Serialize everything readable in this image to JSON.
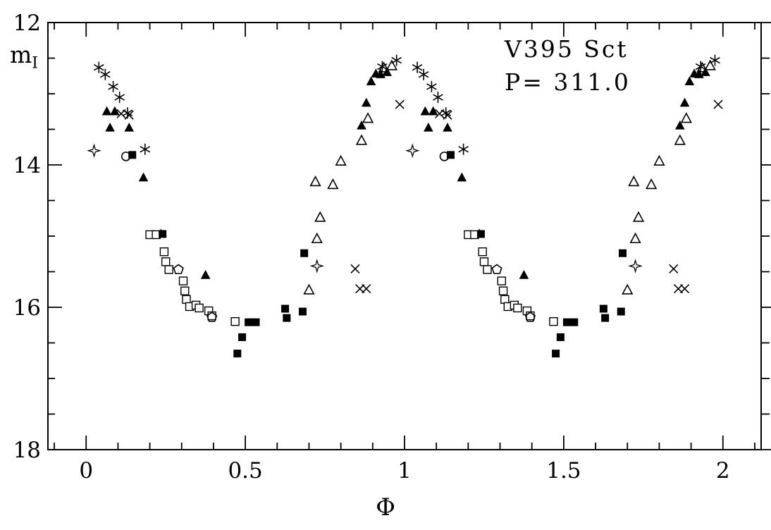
{
  "annotation": {
    "star": "V395 Sct",
    "period": "P= 311.0"
  },
  "labels": {
    "ylabel_main": "m",
    "ylabel_sub": "I",
    "xlabel": "Φ"
  },
  "colors": {
    "foreground": "#000000",
    "background": "#ffffff"
  },
  "chart_data": {
    "type": "scatter",
    "title": "V395 Sct",
    "subtitle": "P= 311.0",
    "xlabel": "Φ",
    "ylabel": "m_I",
    "xlim": [
      -0.12,
      2.12
    ],
    "ylim": [
      12,
      18
    ],
    "y_inverted_magnitude_axis": true,
    "grid": false,
    "legend": "none",
    "phase_duplicated": true,
    "x_major_ticks": [
      {
        "v": 0,
        "label": "0"
      },
      {
        "v": 0.5,
        "label": "0.5"
      },
      {
        "v": 1,
        "label": "1"
      },
      {
        "v": 1.5,
        "label": "1.5"
      },
      {
        "v": 2,
        "label": "2"
      }
    ],
    "x_minor_step": 0.1,
    "y_major_ticks": [
      {
        "v": 12,
        "label": "12"
      },
      {
        "v": 14,
        "label": "14"
      },
      {
        "v": 16,
        "label": "16"
      },
      {
        "v": 18,
        "label": "18"
      }
    ],
    "y_minor_step": 0.5,
    "series": [
      {
        "name": "asterisk",
        "marker": "asterisk",
        "points": [
          [
            0.04,
            12.63
          ],
          [
            0.06,
            12.73
          ],
          [
            0.085,
            12.9
          ],
          [
            0.105,
            13.05
          ],
          [
            0.13,
            13.27
          ],
          [
            0.185,
            13.78
          ],
          [
            0.93,
            12.62
          ],
          [
            0.975,
            12.53
          ]
        ]
      },
      {
        "name": "filled-triangle",
        "marker": "triangle-filled",
        "points": [
          [
            0.065,
            13.25
          ],
          [
            0.09,
            13.25
          ],
          [
            0.075,
            13.48
          ],
          [
            0.135,
            13.48
          ],
          [
            0.18,
            14.18
          ],
          [
            0.235,
            14.97
          ],
          [
            0.375,
            15.55
          ],
          [
            0.865,
            13.45
          ],
          [
            0.88,
            13.13
          ],
          [
            0.895,
            12.83
          ],
          [
            0.91,
            12.72
          ],
          [
            0.925,
            12.73
          ],
          [
            0.945,
            12.7
          ]
        ]
      },
      {
        "name": "open-triangle",
        "marker": "triangle-open",
        "points": [
          [
            0.7,
            15.76
          ],
          [
            0.725,
            15.04
          ],
          [
            0.735,
            14.74
          ],
          [
            0.72,
            14.24
          ],
          [
            0.775,
            14.28
          ],
          [
            0.8,
            13.95
          ],
          [
            0.865,
            13.66
          ],
          [
            0.885,
            13.35
          ],
          [
            0.935,
            12.64
          ],
          [
            0.96,
            12.61
          ]
        ]
      },
      {
        "name": "cross",
        "marker": "cross",
        "points": [
          [
            0.11,
            13.28
          ],
          [
            0.135,
            13.3
          ],
          [
            0.845,
            15.46
          ],
          [
            0.86,
            15.74
          ],
          [
            0.88,
            15.74
          ],
          [
            0.985,
            13.15
          ]
        ]
      },
      {
        "name": "open-square",
        "marker": "square-open",
        "points": [
          [
            0.2,
            14.98
          ],
          [
            0.22,
            14.98
          ],
          [
            0.245,
            15.22
          ],
          [
            0.25,
            15.36
          ],
          [
            0.26,
            15.47
          ],
          [
            0.305,
            15.63
          ],
          [
            0.31,
            15.77
          ],
          [
            0.315,
            15.89
          ],
          [
            0.325,
            15.99
          ],
          [
            0.345,
            15.97
          ],
          [
            0.355,
            16.01
          ],
          [
            0.385,
            16.05
          ],
          [
            0.395,
            16.12
          ],
          [
            0.468,
            16.2
          ]
        ]
      },
      {
        "name": "filled-square",
        "marker": "square-filled",
        "points": [
          [
            0.145,
            13.86
          ],
          [
            0.24,
            14.97
          ],
          [
            0.51,
            16.21
          ],
          [
            0.533,
            16.21
          ],
          [
            0.49,
            16.42
          ],
          [
            0.475,
            16.65
          ],
          [
            0.625,
            16.02
          ],
          [
            0.63,
            16.15
          ],
          [
            0.68,
            16.06
          ],
          [
            0.685,
            15.24
          ]
        ]
      },
      {
        "name": "open-circle",
        "marker": "circle-open",
        "points": [
          [
            0.125,
            13.88
          ]
        ]
      },
      {
        "name": "open-pentagon",
        "marker": "pentagon-open",
        "points": [
          [
            0.29,
            15.47
          ],
          [
            0.395,
            16.14
          ]
        ]
      },
      {
        "name": "four-point-star",
        "marker": "star4-open",
        "points": [
          [
            0.025,
            13.8
          ],
          [
            0.725,
            15.42
          ]
        ]
      }
    ]
  }
}
